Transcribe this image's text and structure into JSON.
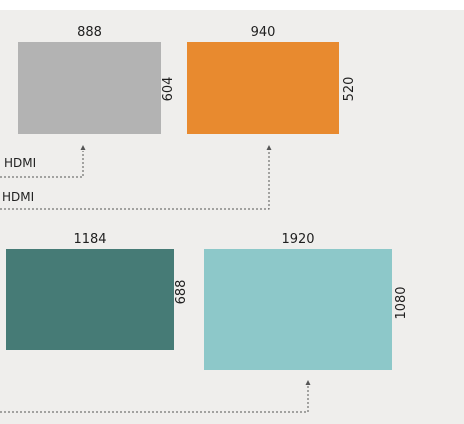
{
  "screens": [
    {
      "id": "screen-1",
      "width_label": "888",
      "height_label": "604",
      "color": "#b3b3b3"
    },
    {
      "id": "screen-2",
      "width_label": "940",
      "height_label": "520",
      "color": "#e88a2f"
    },
    {
      "id": "screen-3",
      "width_label": "1184",
      "height_label": "688",
      "color": "#467b76"
    },
    {
      "id": "screen-4",
      "width_label": "1920",
      "height_label": "1080",
      "color": "#8dc8c9"
    }
  ],
  "connections": [
    {
      "label": "HDMI"
    },
    {
      "label": "HDMI"
    }
  ],
  "colors": {
    "background": "#efeeec",
    "connector": "#555555"
  }
}
